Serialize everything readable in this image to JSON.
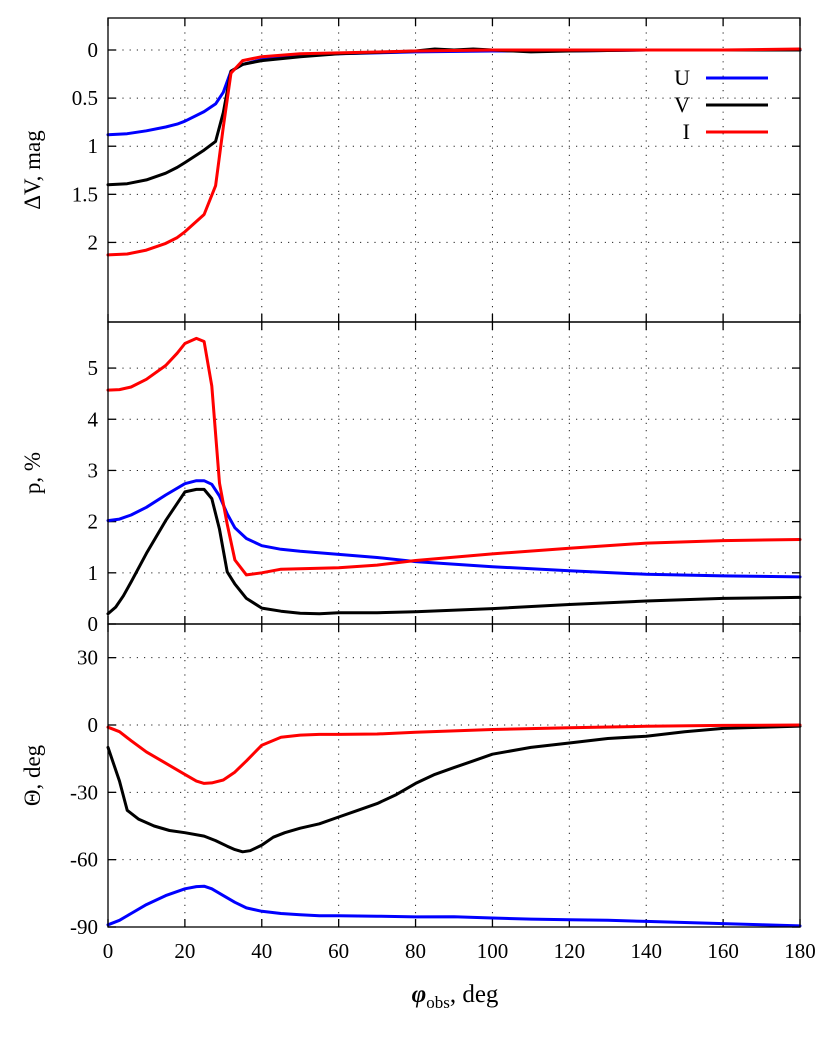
{
  "chart_data": [
    {
      "type": "line",
      "panel": "top",
      "ylabel": "ΔV, mag",
      "xlim": [
        0,
        180
      ],
      "ylim": [
        0,
        2.5
      ],
      "y_inverted": true,
      "xticks": [
        0,
        20,
        40,
        60,
        80,
        100,
        120,
        140,
        160,
        180
      ],
      "yticks": [
        0,
        0.5,
        1,
        1.5,
        2
      ],
      "ytick_labels": [
        "0",
        "0.5",
        "1",
        "1.5",
        "2"
      ],
      "grid": true,
      "legend": "top-right",
      "series": [
        {
          "name": "U",
          "color": "#0000ff",
          "x": [
            0,
            5,
            10,
            15,
            18,
            20,
            25,
            28,
            30,
            32,
            35,
            40,
            50,
            60,
            80,
            100,
            120,
            140,
            160,
            180
          ],
          "y": [
            0.88,
            0.87,
            0.84,
            0.8,
            0.77,
            0.74,
            0.64,
            0.56,
            0.44,
            0.22,
            0.15,
            0.1,
            0.06,
            0.04,
            0.02,
            0.01,
            0.01,
            0.0,
            0.0,
            0.0
          ]
        },
        {
          "name": "V",
          "color": "#000000",
          "x": [
            0,
            5,
            10,
            15,
            18,
            20,
            25,
            28,
            30,
            32,
            35,
            40,
            50,
            60,
            80,
            85,
            90,
            95,
            100,
            110,
            120,
            140,
            160,
            180
          ],
          "y": [
            1.4,
            1.39,
            1.35,
            1.28,
            1.22,
            1.17,
            1.04,
            0.95,
            0.65,
            0.22,
            0.15,
            0.11,
            0.07,
            0.04,
            0.01,
            -0.01,
            0.0,
            -0.01,
            0.0,
            0.02,
            0.01,
            0.0,
            0.0,
            0.0
          ]
        },
        {
          "name": "I",
          "color": "#ff0000",
          "x": [
            0,
            5,
            10,
            15,
            18,
            20,
            25,
            28,
            30,
            32,
            35,
            40,
            50,
            60,
            80,
            100,
            120,
            140,
            160,
            180
          ],
          "y": [
            2.13,
            2.12,
            2.08,
            2.01,
            1.95,
            1.89,
            1.71,
            1.41,
            0.8,
            0.24,
            0.11,
            0.07,
            0.04,
            0.03,
            0.01,
            0.0,
            0.0,
            0.0,
            0.0,
            -0.01
          ]
        }
      ]
    },
    {
      "type": "line",
      "panel": "middle",
      "ylabel": "p, %",
      "xlim": [
        0,
        180
      ],
      "ylim": [
        0,
        5.9
      ],
      "xticks": [
        0,
        20,
        40,
        60,
        80,
        100,
        120,
        140,
        160,
        180
      ],
      "yticks": [
        0,
        1,
        2,
        3,
        4,
        5
      ],
      "ytick_labels": [
        "0",
        "1",
        "2",
        "3",
        "4",
        "5"
      ],
      "grid": true,
      "series": [
        {
          "name": "U",
          "color": "#0000ff",
          "x": [
            0,
            3,
            6,
            10,
            15,
            20,
            23,
            25,
            27,
            29,
            31,
            33,
            36,
            40,
            45,
            50,
            60,
            70,
            80,
            100,
            120,
            140,
            160,
            180
          ],
          "y": [
            2.02,
            2.05,
            2.13,
            2.28,
            2.52,
            2.74,
            2.8,
            2.8,
            2.73,
            2.5,
            2.15,
            1.88,
            1.67,
            1.53,
            1.46,
            1.42,
            1.36,
            1.3,
            1.22,
            1.12,
            1.04,
            0.97,
            0.94,
            0.92
          ]
        },
        {
          "name": "V",
          "color": "#000000",
          "x": [
            0,
            2,
            4,
            6,
            10,
            15,
            20,
            23,
            25,
            27,
            29,
            31,
            33,
            36,
            40,
            45,
            50,
            55,
            60,
            70,
            80,
            100,
            120,
            140,
            160,
            180
          ],
          "y": [
            0.2,
            0.33,
            0.55,
            0.82,
            1.38,
            2.02,
            2.58,
            2.63,
            2.63,
            2.45,
            1.85,
            1.02,
            0.78,
            0.5,
            0.31,
            0.25,
            0.21,
            0.2,
            0.22,
            0.22,
            0.24,
            0.3,
            0.38,
            0.45,
            0.5,
            0.52
          ]
        },
        {
          "name": "I",
          "color": "#ff0000",
          "x": [
            0,
            3,
            6,
            10,
            15,
            18,
            20,
            23,
            25,
            27,
            29,
            31,
            33,
            36,
            40,
            45,
            50,
            60,
            70,
            80,
            100,
            120,
            140,
            160,
            180
          ],
          "y": [
            4.57,
            4.58,
            4.63,
            4.78,
            5.05,
            5.29,
            5.48,
            5.58,
            5.52,
            4.65,
            2.75,
            1.95,
            1.25,
            0.96,
            1.0,
            1.07,
            1.08,
            1.1,
            1.15,
            1.24,
            1.37,
            1.48,
            1.58,
            1.63,
            1.65
          ]
        }
      ]
    },
    {
      "type": "line",
      "panel": "bottom",
      "ylabel": "Θ, deg",
      "xlabel": "φ",
      "xlabel_sub": "obs",
      "xlabel_unit": ", deg",
      "xlim": [
        0,
        180
      ],
      "ylim": [
        -90,
        45
      ],
      "xticks": [
        0,
        20,
        40,
        60,
        80,
        100,
        120,
        140,
        160,
        180
      ],
      "xtick_labels": [
        "0",
        "20",
        "40",
        "60",
        "80",
        "100",
        "120",
        "140",
        "160",
        "180"
      ],
      "yticks": [
        -90,
        -60,
        -30,
        0,
        30
      ],
      "ytick_labels": [
        "-90",
        "-60",
        "-30",
        "0",
        "30"
      ],
      "grid": true,
      "series": [
        {
          "name": "U",
          "color": "#0000ff",
          "x": [
            0,
            3,
            6,
            10,
            15,
            20,
            23,
            25,
            27,
            30,
            33,
            36,
            40,
            45,
            50,
            55,
            60,
            70,
            80,
            90,
            100,
            110,
            120,
            130,
            140,
            150,
            160,
            170,
            180
          ],
          "y": [
            -89,
            -87,
            -84,
            -80,
            -76,
            -73,
            -72,
            -71.8,
            -73,
            -76,
            -79,
            -81.5,
            -83,
            -84,
            -84.5,
            -85,
            -85,
            -85.2,
            -85.5,
            -85.4,
            -86,
            -86.5,
            -86.8,
            -87,
            -87.5,
            -88,
            -88.5,
            -89,
            -89.5
          ]
        },
        {
          "name": "V",
          "color": "#000000",
          "x": [
            0,
            3,
            5,
            8,
            12,
            16,
            20,
            25,
            28,
            31,
            33,
            35,
            37,
            40,
            43,
            46,
            50,
            55,
            60,
            65,
            70,
            75,
            80,
            85,
            90,
            95,
            100,
            110,
            120,
            130,
            140,
            150,
            160,
            170,
            180
          ],
          "y": [
            -10,
            -25,
            -38,
            -42,
            -45,
            -47,
            -48,
            -49.5,
            -51.5,
            -54,
            -55.5,
            -56.5,
            -56,
            -53.5,
            -50,
            -48,
            -46,
            -44,
            -41,
            -38,
            -35,
            -31,
            -26,
            -22,
            -19,
            -16,
            -13,
            -10,
            -8,
            -6,
            -5,
            -3,
            -1.5,
            -1,
            -0.5
          ]
        },
        {
          "name": "I",
          "color": "#ff0000",
          "x": [
            0,
            3,
            6,
            10,
            15,
            20,
            23,
            25,
            27,
            30,
            33,
            36,
            40,
            45,
            50,
            55,
            60,
            70,
            80,
            100,
            120,
            140,
            160,
            180
          ],
          "y": [
            -1,
            -3,
            -7,
            -12,
            -17,
            -22,
            -25,
            -26,
            -25.8,
            -24.5,
            -21,
            -16,
            -9,
            -5.5,
            -4.5,
            -4.2,
            -4.2,
            -4,
            -3.2,
            -2,
            -1.2,
            -0.6,
            -0.2,
            0
          ]
        }
      ]
    }
  ]
}
